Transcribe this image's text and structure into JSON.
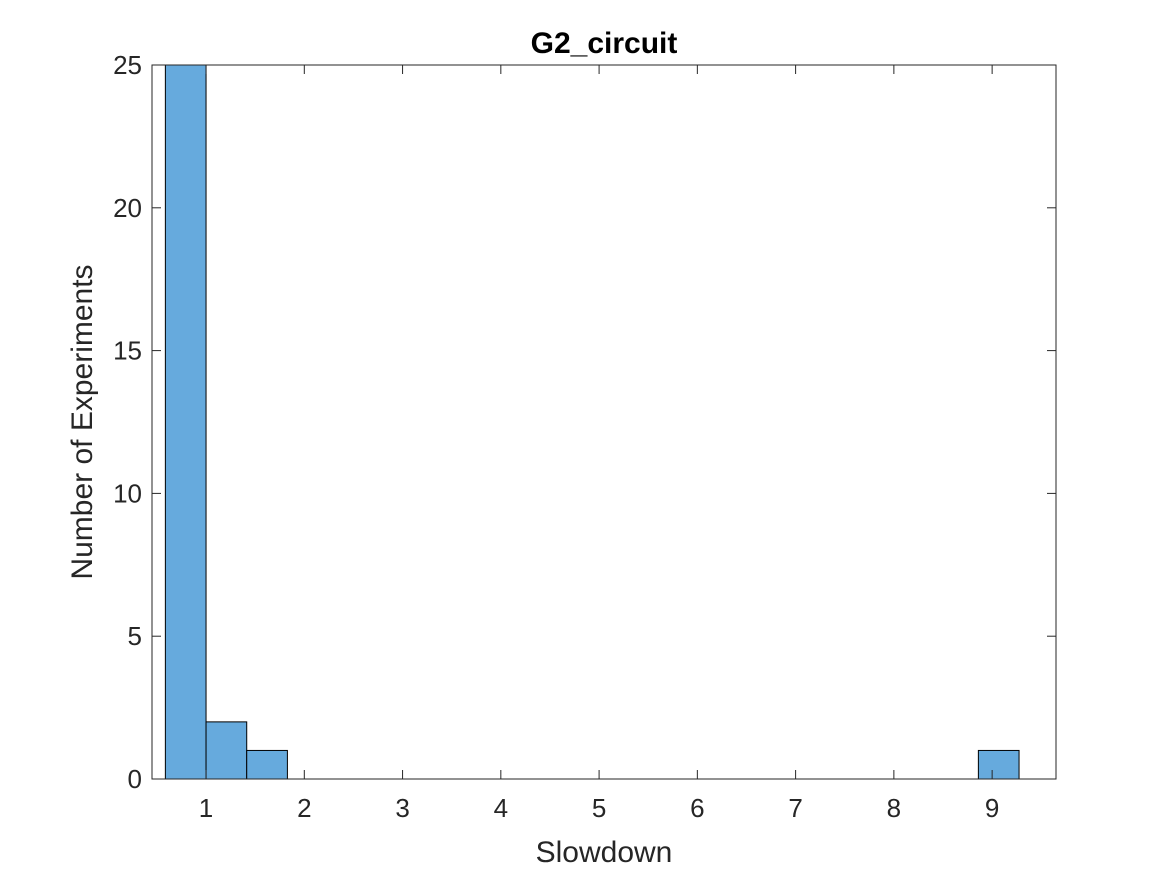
{
  "chart_data": {
    "type": "bar",
    "title": "G2_circuit",
    "xlabel": "Slowdown",
    "ylabel": "Number of Experiments",
    "xlim": [
      0.45,
      9.65
    ],
    "ylim": [
      0,
      25
    ],
    "xticks": [
      1,
      2,
      3,
      4,
      5,
      6,
      7,
      8,
      9
    ],
    "yticks": [
      0,
      5,
      10,
      15,
      20,
      25
    ],
    "bin_width": 0.414,
    "bins": [
      {
        "start": 0.586,
        "end": 1.0,
        "value": 25
      },
      {
        "start": 1.0,
        "end": 1.414,
        "value": 2
      },
      {
        "start": 1.414,
        "end": 1.828,
        "value": 1
      },
      {
        "start": 8.86,
        "end": 9.274,
        "value": 1
      }
    ],
    "bar_color": "#66aadd",
    "bar_edge_color": "#000000",
    "grid": false,
    "legend": "none"
  }
}
